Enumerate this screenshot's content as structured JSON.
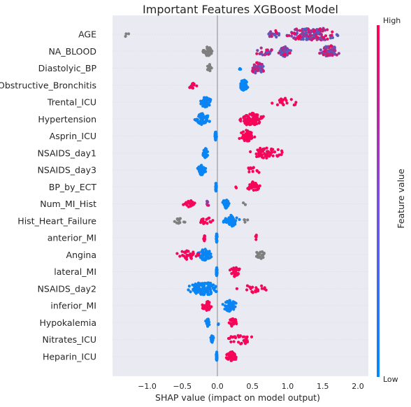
{
  "chart_data": {
    "type": "scatter",
    "subtype": "shap-beeswarm",
    "title": "Important Features XGBoost Model",
    "xlabel": "SHAP value (impact on model output)",
    "xlim": [
      -1.5,
      2.1
    ],
    "xticks": [
      -1.0,
      -0.5,
      0.0,
      0.5,
      1.0,
      1.5,
      2.0
    ],
    "xtick_labels": [
      "−1.0",
      "−0.5",
      "0.0",
      "0.5",
      "1.0",
      "1.5",
      "2.0"
    ],
    "grid": true,
    "colorbar": {
      "label": "Feature value",
      "high_label": "High",
      "low_label": "Low",
      "low_color": "#008afb",
      "high_color": "#ff0052",
      "missing_color": "#7f7f7f"
    },
    "features": [
      {
        "name": "AGE",
        "clusters": [
          {
            "range": [
              0.9,
              1.8
            ],
            "color": "mixed",
            "n": 150
          },
          {
            "range": [
              0.65,
              0.95
            ],
            "color": "mixed",
            "n": 20
          },
          {
            "range": [
              -1.35,
              -1.25
            ],
            "color": "missing",
            "n": 3
          }
        ]
      },
      {
        "name": "NA_BLOOD",
        "clusters": [
          {
            "range": [
              0.85,
              1.05
            ],
            "color": "mixed",
            "n": 50
          },
          {
            "range": [
              0.5,
              0.85
            ],
            "color": "mixed",
            "n": 25
          },
          {
            "range": [
              1.4,
              1.8
            ],
            "color": "mixed",
            "n": 55
          },
          {
            "range": [
              -0.22,
              -0.05
            ],
            "color": "missing",
            "n": 40
          }
        ]
      },
      {
        "name": "Diastolyic_BP",
        "clusters": [
          {
            "range": [
              0.45,
              0.7
            ],
            "color": "mixed",
            "n": 60
          },
          {
            "range": [
              0.28,
              0.35
            ],
            "color": "low",
            "n": 3
          },
          {
            "range": [
              -0.15,
              -0.07
            ],
            "color": "missing",
            "n": 15
          }
        ]
      },
      {
        "name": "Obstructive_Bronchitis",
        "clusters": [
          {
            "range": [
              0.3,
              0.45
            ],
            "color": "low",
            "n": 60
          },
          {
            "range": [
              -0.45,
              -0.25
            ],
            "color": "high",
            "n": 12
          }
        ]
      },
      {
        "name": "Trental_ICU",
        "clusters": [
          {
            "range": [
              -0.28,
              -0.05
            ],
            "color": "low",
            "n": 45
          },
          {
            "range": [
              0.6,
              1.3
            ],
            "color": "high",
            "n": 18
          }
        ]
      },
      {
        "name": "Hypertension",
        "clusters": [
          {
            "range": [
              0.25,
              0.7
            ],
            "color": "high",
            "n": 90
          },
          {
            "range": [
              -0.35,
              -0.08
            ],
            "color": "low",
            "n": 60
          }
        ]
      },
      {
        "name": "Asprin_ICU",
        "clusters": [
          {
            "range": [
              0.28,
              0.55
            ],
            "color": "high",
            "n": 60
          },
          {
            "range": [
              -0.04,
              -0.01
            ],
            "color": "low",
            "n": 30
          }
        ]
      },
      {
        "name": "NSAIDS_day1",
        "clusters": [
          {
            "range": [
              0.4,
              1.0
            ],
            "color": "high",
            "n": 60
          },
          {
            "range": [
              -0.22,
              -0.12
            ],
            "color": "low",
            "n": 35
          }
        ]
      },
      {
        "name": "NSAIDS_day3",
        "clusters": [
          {
            "range": [
              -0.3,
              -0.15
            ],
            "color": "low",
            "n": 40
          },
          {
            "range": [
              0.3,
              0.7
            ],
            "color": "high",
            "n": 12
          }
        ]
      },
      {
        "name": "BP_by_ECT",
        "clusters": [
          {
            "range": [
              0.4,
              0.62
            ],
            "color": "high",
            "n": 40
          },
          {
            "range": [
              -0.03,
              -0.01
            ],
            "color": "low",
            "n": 25
          },
          {
            "range": [
              0.25,
              0.3
            ],
            "color": "high",
            "n": 2
          }
        ]
      },
      {
        "name": "Num_MI_Hist",
        "clusters": [
          {
            "range": [
              0.05,
              0.2
            ],
            "color": "low",
            "n": 30
          },
          {
            "range": [
              -0.5,
              -0.3
            ],
            "color": "high",
            "n": 20
          },
          {
            "range": [
              -0.2,
              -0.1
            ],
            "color": "mixed",
            "n": 6
          },
          {
            "range": [
              0.35,
              0.4
            ],
            "color": "missing",
            "n": 2
          }
        ]
      },
      {
        "name": "Hist_Heart_Failure",
        "clusters": [
          {
            "range": [
              0.05,
              0.35
            ],
            "color": "low",
            "n": 50
          },
          {
            "range": [
              -0.7,
              -0.45
            ],
            "color": "missing",
            "n": 12
          },
          {
            "range": [
              -0.3,
              0.0
            ],
            "color": "high",
            "n": 15
          },
          {
            "range": [
              0.35,
              0.45
            ],
            "color": "missing",
            "n": 4
          }
        ]
      },
      {
        "name": "anterior_MI",
        "clusters": [
          {
            "range": [
              -0.02,
              0.0
            ],
            "color": "low",
            "n": 30
          },
          {
            "range": [
              -0.2,
              -0.17
            ],
            "color": "high",
            "n": 14
          },
          {
            "range": [
              0.54,
              0.57
            ],
            "color": "high",
            "n": 5
          }
        ]
      },
      {
        "name": "Angina",
        "clusters": [
          {
            "range": [
              -0.3,
              -0.05
            ],
            "color": "low",
            "n": 60
          },
          {
            "range": [
              -0.65,
              -0.2
            ],
            "color": "high",
            "n": 30
          },
          {
            "range": [
              0.5,
              0.75
            ],
            "color": "missing",
            "n": 20
          }
        ]
      },
      {
        "name": "lateral_MI",
        "clusters": [
          {
            "range": [
              0.15,
              0.35
            ],
            "color": "high",
            "n": 35
          },
          {
            "range": [
              -0.02,
              0.0
            ],
            "color": "low",
            "n": 25
          }
        ]
      },
      {
        "name": "NSAIDS_day2",
        "clusters": [
          {
            "range": [
              -0.45,
              0.05
            ],
            "color": "low",
            "n": 120
          },
          {
            "range": [
              0.25,
              0.8
            ],
            "color": "high",
            "n": 20
          }
        ]
      },
      {
        "name": "inferior_MI",
        "clusters": [
          {
            "range": [
              0.05,
              0.3
            ],
            "color": "low",
            "n": 60
          },
          {
            "range": [
              -0.25,
              -0.05
            ],
            "color": "high",
            "n": 35
          }
        ]
      },
      {
        "name": "Hypokalemia",
        "clusters": [
          {
            "range": [
              -0.17,
              -0.1
            ],
            "color": "low",
            "n": 25
          },
          {
            "range": [
              0.15,
              0.3
            ],
            "color": "high",
            "n": 25
          },
          {
            "range": [
              0.0,
              0.02
            ],
            "color": "low",
            "n": 2
          }
        ]
      },
      {
        "name": "Nitrates_ICU",
        "clusters": [
          {
            "range": [
              -0.1,
              -0.05
            ],
            "color": "low",
            "n": 25
          },
          {
            "range": [
              0.05,
              0.65
            ],
            "color": "high",
            "n": 30
          }
        ]
      },
      {
        "name": "Heparin_ICU",
        "clusters": [
          {
            "range": [
              0.1,
              0.3
            ],
            "color": "high",
            "n": 40
          },
          {
            "range": [
              -0.02,
              0.0
            ],
            "color": "low",
            "n": 30
          }
        ]
      }
    ]
  }
}
